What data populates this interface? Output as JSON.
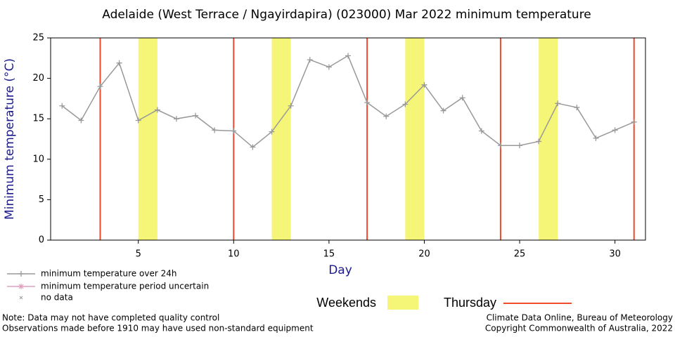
{
  "chart_data": {
    "type": "line",
    "title": "Adelaide (West Terrace / Ngayirdapira) (023000) Mar 2022 minimum temperature",
    "x_label": "Day",
    "y_label": "Minimum temperature (°C)",
    "x": [
      1,
      2,
      3,
      4,
      5,
      6,
      7,
      8,
      9,
      10,
      11,
      12,
      13,
      14,
      15,
      16,
      17,
      18,
      19,
      20,
      21,
      22,
      23,
      24,
      25,
      26,
      27,
      28,
      29,
      30,
      31
    ],
    "series": [
      {
        "name": "minimum temperature over 24h",
        "color": "#999999",
        "values": [
          16.6,
          14.8,
          19.0,
          21.9,
          14.8,
          16.1,
          15.0,
          15.4,
          13.6,
          13.5,
          11.5,
          13.4,
          16.6,
          22.3,
          21.4,
          22.8,
          17.0,
          15.3,
          16.8,
          19.2,
          16.0,
          17.6,
          13.5,
          11.7,
          11.7,
          12.2,
          16.9,
          16.4,
          12.6,
          13.6,
          14.6
        ]
      }
    ],
    "legend_extra": [
      {
        "name": "minimum temperature period uncertain",
        "color": "#e0a0c0"
      },
      {
        "name": "no data",
        "color": "#999999"
      }
    ],
    "xlim": [
      0.4,
      31.6
    ],
    "ylim": [
      0,
      25
    ],
    "xticks": [
      5,
      10,
      15,
      20,
      25,
      30
    ],
    "yticks": [
      0,
      5,
      10,
      15,
      20,
      25
    ],
    "weekends": {
      "label": "Weekends",
      "color": "#f5f578",
      "spans": [
        [
          5,
          6
        ],
        [
          12,
          13
        ],
        [
          19,
          20
        ],
        [
          26,
          27
        ]
      ]
    },
    "thursdays": {
      "label": "Thursday",
      "color": "#f04a2c",
      "days": [
        3,
        10,
        17,
        24,
        31
      ]
    },
    "notes": [
      "Note: Data may not have completed quality control",
      "Observations made before 1910 may have used non-standard equipment"
    ],
    "credits": [
      "Climate Data Online, Bureau of Meteorology",
      "Copyright Commonwealth of Australia, 2022"
    ]
  }
}
